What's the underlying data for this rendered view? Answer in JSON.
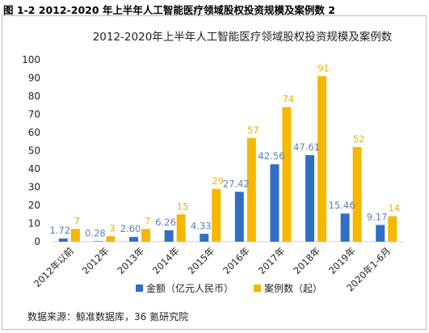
{
  "figure_caption": "图 1-2 2012-2020 年上半年人工智能医疗领域股权投资规模及案例数 2",
  "source_note": "数据来源：鲸准数据库，36 氪研究院",
  "colors": {
    "amount": "#2f6fc6",
    "cases": "#f6b700",
    "amount_label": "#5b7fb3",
    "cases_label": "#f2b200"
  },
  "chart_data": {
    "type": "bar",
    "title": "2012-2020年上半年人工智能医疗领域股权投资规模及案例数",
    "xlabel": "",
    "ylabel": "",
    "ylim": [
      0,
      100
    ],
    "yticks": [
      "0",
      "10",
      "20",
      "30",
      "40",
      "50",
      "60",
      "70",
      "80",
      "90",
      "100"
    ],
    "categories": [
      "2012年以前",
      "2012年",
      "2013年",
      "2014年",
      "2015年",
      "2016年",
      "2017年",
      "2018年",
      "2019年",
      "2020年1-6月"
    ],
    "series": [
      {
        "name": "金额（亿元人民币）",
        "values": [
          1.72,
          0.28,
          2.6,
          6.26,
          4.33,
          27.42,
          42.56,
          47.61,
          15.46,
          9.17
        ],
        "labels": [
          "1.72",
          "0.28",
          "2.60",
          "6.26",
          "4.33",
          "27.42",
          "42.56",
          "47.61",
          "15.46",
          "9.17"
        ]
      },
      {
        "name": "案例数（起）",
        "values": [
          7,
          3,
          7,
          15,
          29,
          57,
          74,
          91,
          52,
          14
        ],
        "labels": [
          "7",
          "3",
          "7",
          "15",
          "29",
          "57",
          "74",
          "91",
          "52",
          "14"
        ]
      }
    ],
    "grid": false,
    "legend_position": "bottom"
  }
}
